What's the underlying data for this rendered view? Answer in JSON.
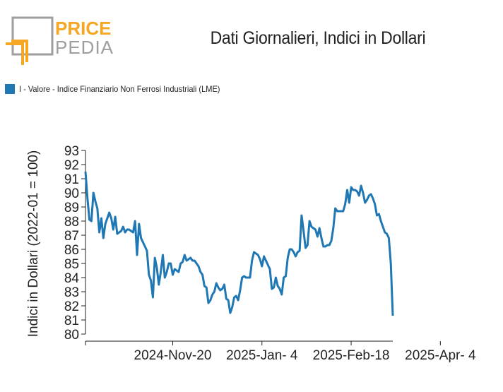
{
  "logo": {
    "line1": "PRICE",
    "line2": "PEDIA",
    "accent_color": "#f5a623",
    "gray_color": "#9e9e9e"
  },
  "chart_data": {
    "type": "line",
    "title": "Dati Giornalieri, Indici in Dollari",
    "xlabel": "",
    "ylabel": "Indici in Dollari (2022-01 = 100)",
    "ylim": [
      80,
      93
    ],
    "yticks": [
      80,
      81,
      82,
      83,
      84,
      85,
      86,
      87,
      88,
      89,
      90,
      91,
      92,
      93
    ],
    "x_tick_labels": [
      "2024-Nov-20",
      "2025-Jan- 4",
      "2025-Feb-18",
      "2025-Apr- 4"
    ],
    "x_tick_days": [
      44,
      89,
      134,
      179
    ],
    "legend_position": "top-left",
    "grid": false,
    "series": [
      {
        "name": "I - Valore - Indice Finanziario Non Ferrosi Industriali (LME)",
        "color": "#1f77b4",
        "points": [
          [
            0,
            91.5
          ],
          [
            1,
            89.6
          ],
          [
            2,
            88.1
          ],
          [
            3,
            88.0
          ],
          [
            4,
            90.0
          ],
          [
            5,
            89.4
          ],
          [
            6,
            88.9
          ],
          [
            7,
            87.2
          ],
          [
            8,
            88.2
          ],
          [
            9,
            86.8
          ],
          [
            10,
            87.8
          ],
          [
            11,
            88.2
          ],
          [
            12,
            88.6
          ],
          [
            13,
            88.2
          ],
          [
            14,
            87.4
          ],
          [
            15,
            88.3
          ],
          [
            16,
            87.1
          ],
          [
            17,
            87.2
          ],
          [
            18,
            87.3
          ],
          [
            19,
            87.6
          ],
          [
            20,
            87.2
          ],
          [
            21,
            87.4
          ],
          [
            22,
            87.4
          ],
          [
            23,
            87.3
          ],
          [
            24,
            87.2
          ],
          [
            25,
            88.0
          ],
          [
            26,
            85.6
          ],
          [
            27,
            87.8
          ],
          [
            28,
            86.8
          ],
          [
            29,
            86.5
          ],
          [
            30,
            86.2
          ],
          [
            31,
            85.9
          ],
          [
            32,
            84.2
          ],
          [
            33,
            83.8
          ],
          [
            34,
            82.6
          ],
          [
            35,
            85.4
          ],
          [
            36,
            84.7
          ],
          [
            37,
            83.5
          ],
          [
            38,
            84.4
          ],
          [
            39,
            85.6
          ],
          [
            40,
            84.0
          ],
          [
            41,
            84.4
          ],
          [
            42,
            85.0
          ],
          [
            43,
            85.0
          ],
          [
            44,
            84.2
          ],
          [
            45,
            84.6
          ],
          [
            46,
            84.5
          ],
          [
            47,
            84.4
          ],
          [
            48,
            85.0
          ],
          [
            49,
            85.1
          ],
          [
            50,
            85.6
          ],
          [
            51,
            85.2
          ],
          [
            52,
            85.3
          ],
          [
            53,
            85.4
          ],
          [
            54,
            85.2
          ],
          [
            55,
            85.2
          ],
          [
            56,
            85.0
          ],
          [
            57,
            84.8
          ],
          [
            58,
            84.4
          ],
          [
            59,
            84.2
          ],
          [
            60,
            83.4
          ],
          [
            61,
            83.3
          ],
          [
            62,
            82.2
          ],
          [
            63,
            82.4
          ],
          [
            64,
            82.8
          ],
          [
            65,
            83.0
          ],
          [
            66,
            83.6
          ],
          [
            67,
            83.3
          ],
          [
            68,
            83.1
          ],
          [
            69,
            83.2
          ],
          [
            70,
            83.5
          ],
          [
            71,
            82.5
          ],
          [
            72,
            82.4
          ],
          [
            73,
            81.5
          ],
          [
            74,
            81.9
          ],
          [
            75,
            82.6
          ],
          [
            76,
            82.7
          ],
          [
            77,
            82.4
          ],
          [
            78,
            83.1
          ],
          [
            79,
            84.0
          ],
          [
            80,
            84.1
          ],
          [
            81,
            84.0
          ],
          [
            82,
            84.0
          ],
          [
            83,
            84.0
          ],
          [
            84,
            85.2
          ],
          [
            85,
            85.8
          ],
          [
            86,
            85.7
          ],
          [
            87,
            85.6
          ],
          [
            88,
            85.3
          ],
          [
            89,
            84.8
          ],
          [
            90,
            85.5
          ],
          [
            91,
            85.2
          ],
          [
            92,
            84.9
          ],
          [
            93,
            84.6
          ],
          [
            94,
            83.2
          ],
          [
            95,
            83.3
          ],
          [
            96,
            84.0
          ],
          [
            97,
            83.4
          ],
          [
            98,
            83.2
          ],
          [
            99,
            82.8
          ],
          [
            100,
            84.0
          ],
          [
            101,
            84.1
          ],
          [
            102,
            85.4
          ],
          [
            103,
            86.0
          ],
          [
            104,
            86.0
          ],
          [
            105,
            85.8
          ],
          [
            106,
            85.5
          ],
          [
            107,
            85.8
          ],
          [
            108,
            85.9
          ],
          [
            109,
            88.4
          ],
          [
            110,
            87.3
          ],
          [
            111,
            86.1
          ],
          [
            112,
            86.3
          ],
          [
            113,
            88.0
          ],
          [
            114,
            87.6
          ],
          [
            115,
            87.5
          ],
          [
            116,
            87.4
          ],
          [
            117,
            86.9
          ],
          [
            118,
            87.5
          ],
          [
            119,
            86.8
          ],
          [
            120,
            86.2
          ],
          [
            121,
            86.2
          ],
          [
            122,
            86.3
          ],
          [
            123,
            86.3
          ],
          [
            124,
            86.6
          ],
          [
            125,
            87.5
          ],
          [
            126,
            88.9
          ],
          [
            127,
            88.7
          ],
          [
            128,
            88.7
          ],
          [
            129,
            88.7
          ],
          [
            130,
            88.7
          ],
          [
            131,
            89.2
          ],
          [
            132,
            90.2
          ],
          [
            133,
            89.3
          ],
          [
            134,
            90.4
          ],
          [
            135,
            90.2
          ],
          [
            136,
            90.2
          ],
          [
            137,
            90.1
          ],
          [
            138,
            89.8
          ],
          [
            139,
            90.5
          ],
          [
            140,
            90.0
          ],
          [
            141,
            89.3
          ],
          [
            142,
            89.5
          ],
          [
            143,
            89.8
          ],
          [
            144,
            89.9
          ],
          [
            145,
            89.6
          ],
          [
            146,
            89.2
          ],
          [
            147,
            88.4
          ],
          [
            148,
            88.5
          ],
          [
            149,
            88.0
          ],
          [
            150,
            87.6
          ],
          [
            151,
            87.2
          ],
          [
            152,
            87.1
          ],
          [
            153,
            86.8
          ],
          [
            154,
            85.0
          ],
          [
            155,
            81.3
          ]
        ]
      }
    ]
  }
}
